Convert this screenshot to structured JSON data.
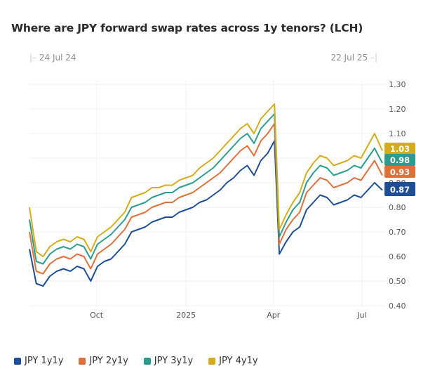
{
  "chart_data": {
    "type": "line",
    "title": "Where are JPY forward swap rates across 1y tenors? (LCH)",
    "date_range": {
      "start": "24 Jul 24",
      "end": "22 Jul 25"
    },
    "xlabel": "",
    "ylabel": "",
    "x_ticks": [
      "Oct",
      "2025",
      "Apr",
      "Jul"
    ],
    "y_ticks": [
      "0.40",
      "0.50",
      "0.60",
      "0.70",
      "0.80",
      "0.90",
      "1.00",
      "1.10",
      "1.20",
      "1.30"
    ],
    "ylim": [
      0.4,
      1.3
    ],
    "grid": true,
    "legend_position": "bottom-left",
    "x": [
      "2024-07-24",
      "2024-07-31",
      "2024-08-07",
      "2024-08-14",
      "2024-08-21",
      "2024-08-28",
      "2024-09-04",
      "2024-09-11",
      "2024-09-18",
      "2024-09-25",
      "2024-10-02",
      "2024-10-09",
      "2024-10-16",
      "2024-10-23",
      "2024-10-30",
      "2024-11-06",
      "2024-11-13",
      "2024-11-20",
      "2024-11-27",
      "2024-12-04",
      "2024-12-11",
      "2024-12-18",
      "2024-12-25",
      "2025-01-01",
      "2025-01-08",
      "2025-01-15",
      "2025-01-22",
      "2025-01-29",
      "2025-02-05",
      "2025-02-12",
      "2025-02-19",
      "2025-02-26",
      "2025-03-05",
      "2025-03-12",
      "2025-03-19",
      "2025-03-26",
      "2025-04-02",
      "2025-04-07",
      "2025-04-14",
      "2025-04-21",
      "2025-04-28",
      "2025-05-05",
      "2025-05-12",
      "2025-05-19",
      "2025-05-26",
      "2025-06-02",
      "2025-06-09",
      "2025-06-16",
      "2025-06-23",
      "2025-06-30",
      "2025-07-07",
      "2025-07-14",
      "2025-07-22"
    ],
    "series": [
      {
        "name": "JPY 1y1y",
        "color": "#1f4e96",
        "last_value": 0.87,
        "values": [
          0.63,
          0.49,
          0.48,
          0.52,
          0.54,
          0.55,
          0.54,
          0.56,
          0.55,
          0.5,
          0.56,
          0.58,
          0.59,
          0.62,
          0.65,
          0.7,
          0.71,
          0.72,
          0.74,
          0.75,
          0.76,
          0.76,
          0.78,
          0.79,
          0.8,
          0.82,
          0.83,
          0.85,
          0.87,
          0.9,
          0.92,
          0.95,
          0.97,
          0.93,
          0.99,
          1.02,
          1.07,
          0.61,
          0.66,
          0.7,
          0.72,
          0.79,
          0.82,
          0.85,
          0.84,
          0.81,
          0.82,
          0.83,
          0.85,
          0.84,
          0.87,
          0.9,
          0.87
        ]
      },
      {
        "name": "JPY 2y1y",
        "color": "#e0703a",
        "last_value": 0.93,
        "values": [
          0.7,
          0.54,
          0.53,
          0.57,
          0.59,
          0.6,
          0.59,
          0.61,
          0.6,
          0.55,
          0.61,
          0.63,
          0.65,
          0.68,
          0.71,
          0.76,
          0.77,
          0.78,
          0.8,
          0.81,
          0.82,
          0.82,
          0.84,
          0.85,
          0.86,
          0.88,
          0.9,
          0.92,
          0.94,
          0.97,
          1.0,
          1.03,
          1.05,
          1.01,
          1.07,
          1.1,
          1.14,
          0.65,
          0.71,
          0.75,
          0.78,
          0.86,
          0.89,
          0.92,
          0.91,
          0.88,
          0.89,
          0.9,
          0.92,
          0.91,
          0.95,
          0.99,
          0.93
        ]
      },
      {
        "name": "JPY 3y1y",
        "color": "#2a9d8f",
        "last_value": 0.98,
        "values": [
          0.75,
          0.58,
          0.57,
          0.61,
          0.63,
          0.64,
          0.63,
          0.65,
          0.64,
          0.59,
          0.65,
          0.67,
          0.69,
          0.72,
          0.75,
          0.8,
          0.81,
          0.82,
          0.84,
          0.85,
          0.86,
          0.86,
          0.88,
          0.89,
          0.9,
          0.92,
          0.94,
          0.96,
          0.99,
          1.02,
          1.05,
          1.08,
          1.1,
          1.06,
          1.12,
          1.15,
          1.18,
          0.68,
          0.74,
          0.79,
          0.82,
          0.9,
          0.94,
          0.97,
          0.96,
          0.93,
          0.94,
          0.95,
          0.97,
          0.96,
          1.0,
          1.04,
          0.98
        ]
      },
      {
        "name": "JPY 4y1y",
        "color": "#d4ac1c",
        "last_value": 1.03,
        "values": [
          0.8,
          0.62,
          0.6,
          0.64,
          0.66,
          0.67,
          0.66,
          0.68,
          0.67,
          0.62,
          0.68,
          0.7,
          0.72,
          0.75,
          0.78,
          0.84,
          0.85,
          0.86,
          0.88,
          0.88,
          0.89,
          0.89,
          0.91,
          0.92,
          0.93,
          0.96,
          0.98,
          1.0,
          1.03,
          1.06,
          1.09,
          1.12,
          1.14,
          1.1,
          1.16,
          1.19,
          1.22,
          0.71,
          0.77,
          0.82,
          0.86,
          0.94,
          0.98,
          1.01,
          1.0,
          0.97,
          0.98,
          0.99,
          1.01,
          1.0,
          1.05,
          1.1,
          1.03
        ]
      }
    ]
  }
}
